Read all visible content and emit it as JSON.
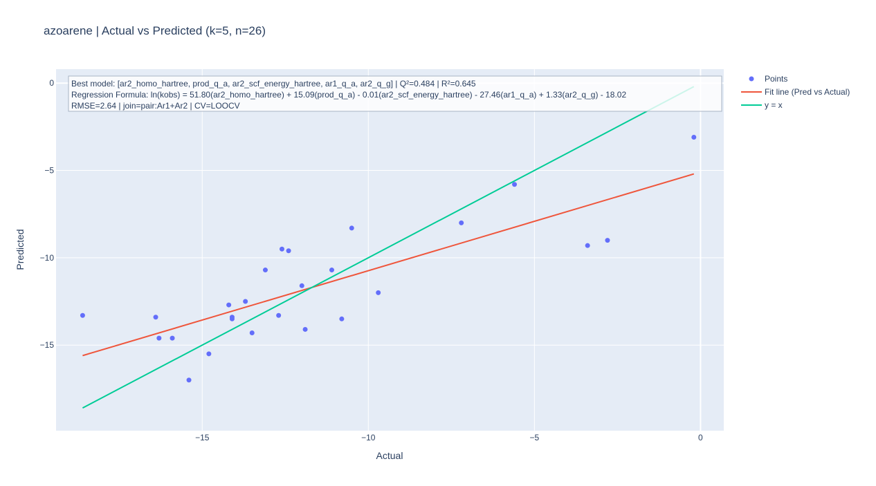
{
  "chart_data": {
    "type": "scatter",
    "title": "azoarene | Actual vs Predicted (k=5, n=26)",
    "xlabel": "Actual",
    "ylabel": "Predicted",
    "xlim": [
      -19.4,
      0.7
    ],
    "ylim": [
      -19.9,
      0.8
    ],
    "x_ticks": [
      -15,
      -10,
      -5,
      0
    ],
    "x_tick_labels": [
      "−15",
      "−10",
      "−5",
      "0"
    ],
    "y_ticks": [
      0,
      -5,
      -10,
      -15
    ],
    "y_tick_labels": [
      "0",
      "−5",
      "−10",
      "−15"
    ],
    "grid": true,
    "legend_position": "top-right",
    "colors": {
      "points": "#636efa",
      "fit": "#ef553b",
      "identity": "#00cc96",
      "plot_bg": "#e5ecf6",
      "text": "#2a3f5f"
    },
    "legend": [
      "Points",
      "Fit line (Pred vs Actual)",
      "y = x"
    ],
    "series": [
      {
        "name": "Points",
        "mode": "markers",
        "x": [
          -18.6,
          -16.4,
          -16.3,
          -15.9,
          -15.4,
          -14.8,
          -14.2,
          -14.1,
          -14.1,
          -13.7,
          -13.5,
          -13.1,
          -12.7,
          -12.6,
          -12.4,
          -12.0,
          -11.9,
          -11.1,
          -10.8,
          -10.5,
          -9.7,
          -7.2,
          -5.6,
          -3.4,
          -2.8,
          -0.2
        ],
        "y": [
          -13.3,
          -13.4,
          -14.6,
          -14.6,
          -17.0,
          -15.5,
          -12.7,
          -13.5,
          -13.4,
          -12.5,
          -14.3,
          -10.7,
          -13.3,
          -9.5,
          -9.6,
          -11.6,
          -14.1,
          -10.7,
          -13.5,
          -8.3,
          -12.0,
          -8.0,
          -5.8,
          -9.3,
          -9.0,
          -3.1
        ]
      },
      {
        "name": "Fit line (Pred vs Actual)",
        "mode": "lines",
        "x": [
          -18.6,
          -0.2
        ],
        "y": [
          -15.6,
          -5.2
        ]
      },
      {
        "name": "y = x",
        "mode": "lines",
        "x": [
          -18.6,
          -0.2
        ],
        "y": [
          -18.6,
          -0.2
        ]
      }
    ],
    "annotation": {
      "lines": [
        "Best model: [ar2_homo_hartree, prod_q_a, ar2_scf_energy_hartree, ar1_q_a, ar2_q_g] | Q²=0.484 | R²=0.645",
        "Regression Formula: ln(kobs) = 51.80(ar2_homo_hartree) + 15.09(prod_q_a) - 0.01(ar2_scf_energy_hartree) - 27.46(ar1_q_a) + 1.33(ar2_q_g) - 18.02",
        "RMSE=2.64 | join=pair:Ar1+Ar2 | CV=LOOCV"
      ]
    }
  }
}
